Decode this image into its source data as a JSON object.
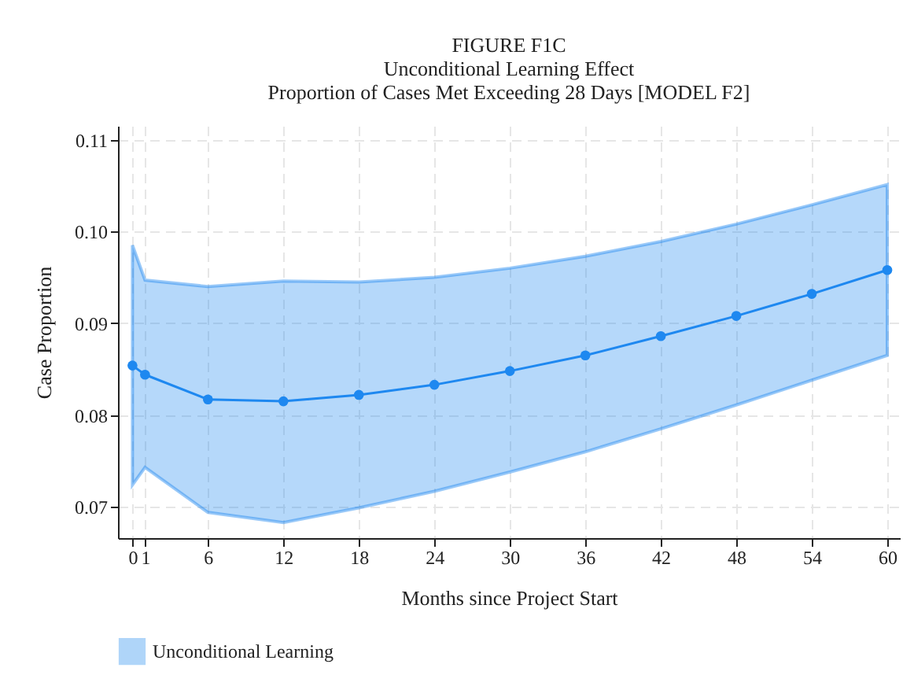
{
  "chart_data": {
    "type": "line",
    "title": "FIGURE F1C",
    "subtitle": "Unconditional Learning Effect\nProportion of Cases Met Exceeding 28 Days [MODEL F2]",
    "xlabel": "Months since Project Start",
    "ylabel": "Case Proportion",
    "x": [
      0,
      1,
      6,
      12,
      18,
      24,
      30,
      36,
      42,
      48,
      54,
      60
    ],
    "series": [
      {
        "name": "Unconditional Learning",
        "color": "#1e88f0",
        "values": [
          0.0854,
          0.0844,
          0.0817,
          0.0815,
          0.0822,
          0.0833,
          0.0848,
          0.0865,
          0.0886,
          0.0908,
          0.0932,
          0.0958
        ],
        "lower": [
          0.0724,
          0.0743,
          0.0694,
          0.0683,
          0.0699,
          0.0717,
          0.0738,
          0.076,
          0.0785,
          0.0811,
          0.0838,
          0.0865
        ],
        "upper": [
          0.0985,
          0.0947,
          0.094,
          0.0946,
          0.0945,
          0.095,
          0.096,
          0.0973,
          0.0989,
          0.1008,
          0.1029,
          0.1051
        ]
      }
    ],
    "xlim": [
      -1.15,
      61
    ],
    "ylim": [
      0.0666,
      0.1115
    ],
    "xticks": [
      0,
      1,
      6,
      12,
      18,
      24,
      30,
      36,
      42,
      48,
      54,
      60
    ],
    "yticks": [
      0.07,
      0.08,
      0.09,
      {
        "value": 0.1,
        "label": "0.10"
      },
      0.11
    ],
    "grid": true,
    "legend": "bottom",
    "marker": "circle",
    "line_style": "solid"
  }
}
